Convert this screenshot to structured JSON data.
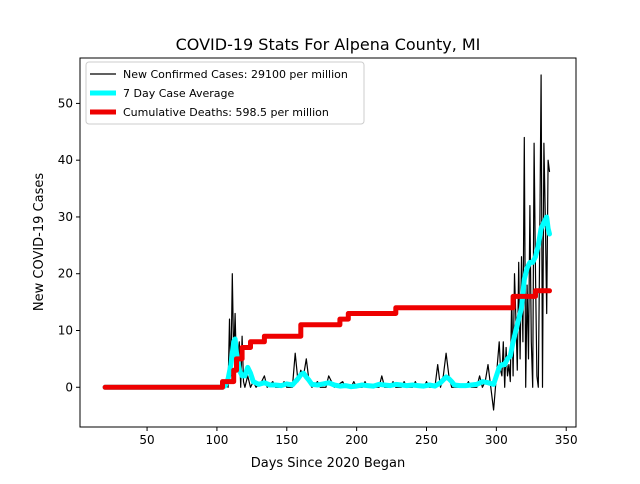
{
  "chart_data": {
    "type": "line",
    "title": "COVID-19 Stats For Alpena County, MI",
    "xlabel": "Days Since 2020 Began",
    "ylabel": "New COVID-19 Cases",
    "xlim": [
      2,
      357
    ],
    "ylim": [
      -7,
      58
    ],
    "x_ticks": [
      50,
      100,
      150,
      200,
      250,
      300,
      350
    ],
    "y_ticks": [
      0,
      10,
      20,
      30,
      40,
      50
    ],
    "grid": false,
    "legend_position": "upper-left",
    "series": [
      {
        "name": "New Confirmed Cases: 29100 per million",
        "color": "#000000",
        "width": "thin",
        "points": [
          [
            20,
            0
          ],
          [
            104,
            0
          ],
          [
            106,
            1
          ],
          [
            108,
            0
          ],
          [
            109,
            12
          ],
          [
            110,
            2
          ],
          [
            111,
            20
          ],
          [
            112,
            5
          ],
          [
            113,
            13
          ],
          [
            114,
            3
          ],
          [
            116,
            8
          ],
          [
            117,
            0
          ],
          [
            118,
            9
          ],
          [
            119,
            1
          ],
          [
            120,
            0
          ],
          [
            122,
            2
          ],
          [
            124,
            0
          ],
          [
            126,
            1
          ],
          [
            128,
            0
          ],
          [
            132,
            1
          ],
          [
            134,
            2
          ],
          [
            136,
            0
          ],
          [
            140,
            1
          ],
          [
            142,
            0
          ],
          [
            146,
            0
          ],
          [
            148,
            1
          ],
          [
            150,
            0
          ],
          [
            154,
            0
          ],
          [
            156,
            6
          ],
          [
            158,
            1
          ],
          [
            160,
            3
          ],
          [
            162,
            2
          ],
          [
            164,
            5
          ],
          [
            166,
            1
          ],
          [
            168,
            0
          ],
          [
            172,
            1
          ],
          [
            174,
            0
          ],
          [
            178,
            0
          ],
          [
            180,
            2
          ],
          [
            182,
            1
          ],
          [
            184,
            0
          ],
          [
            190,
            1
          ],
          [
            192,
            0
          ],
          [
            196,
            0
          ],
          [
            198,
            1
          ],
          [
            200,
            0
          ],
          [
            204,
            0
          ],
          [
            206,
            1
          ],
          [
            208,
            0
          ],
          [
            212,
            0
          ],
          [
            216,
            0
          ],
          [
            218,
            2
          ],
          [
            220,
            0
          ],
          [
            224,
            0
          ],
          [
            226,
            1
          ],
          [
            228,
            0
          ],
          [
            232,
            0
          ],
          [
            234,
            1
          ],
          [
            236,
            0
          ],
          [
            240,
            0
          ],
          [
            242,
            1
          ],
          [
            244,
            0
          ],
          [
            248,
            0
          ],
          [
            250,
            1
          ],
          [
            252,
            0
          ],
          [
            256,
            0
          ],
          [
            258,
            4
          ],
          [
            260,
            0
          ],
          [
            262,
            2
          ],
          [
            264,
            6
          ],
          [
            266,
            2
          ],
          [
            268,
            0
          ],
          [
            272,
            0
          ],
          [
            278,
            0
          ],
          [
            280,
            1
          ],
          [
            282,
            0
          ],
          [
            286,
            0
          ],
          [
            288,
            2
          ],
          [
            290,
            0
          ],
          [
            292,
            1
          ],
          [
            294,
            4
          ],
          [
            296,
            0
          ],
          [
            298,
            -4
          ],
          [
            300,
            2
          ],
          [
            302,
            8
          ],
          [
            303,
            3
          ],
          [
            304,
            2
          ],
          [
            305,
            8
          ],
          [
            306,
            0
          ],
          [
            307,
            7
          ],
          [
            308,
            2
          ],
          [
            309,
            4
          ],
          [
            310,
            1
          ],
          [
            311,
            16
          ],
          [
            312,
            2
          ],
          [
            313,
            20
          ],
          [
            314,
            12
          ],
          [
            315,
            3
          ],
          [
            316,
            22
          ],
          [
            317,
            5
          ],
          [
            318,
            23
          ],
          [
            319,
            8
          ],
          [
            320,
            44
          ],
          [
            321,
            0
          ],
          [
            322,
            18
          ],
          [
            323,
            5
          ],
          [
            324,
            32
          ],
          [
            325,
            8
          ],
          [
            326,
            0
          ],
          [
            327,
            43
          ],
          [
            328,
            20
          ],
          [
            329,
            2
          ],
          [
            330,
            0
          ],
          [
            331,
            25
          ],
          [
            332,
            55
          ],
          [
            333,
            0
          ],
          [
            334,
            43
          ],
          [
            335,
            30
          ],
          [
            336,
            13
          ],
          [
            337,
            40
          ],
          [
            338,
            38
          ]
        ]
      },
      {
        "name": "7 Day Case Average",
        "color": "#00ffff",
        "width": "thick",
        "points": [
          [
            20,
            0
          ],
          [
            104,
            0
          ],
          [
            106,
            0.3
          ],
          [
            108,
            1.5
          ],
          [
            110,
            4
          ],
          [
            112,
            8
          ],
          [
            113,
            8.5
          ],
          [
            114,
            6
          ],
          [
            116,
            3
          ],
          [
            118,
            2
          ],
          [
            120,
            2
          ],
          [
            122,
            3.5
          ],
          [
            124,
            2.5
          ],
          [
            126,
            1
          ],
          [
            130,
            0.5
          ],
          [
            134,
            0.8
          ],
          [
            138,
            0.4
          ],
          [
            142,
            0.4
          ],
          [
            146,
            0.3
          ],
          [
            150,
            0.6
          ],
          [
            154,
            0.4
          ],
          [
            158,
            1.5
          ],
          [
            160,
            2.2
          ],
          [
            162,
            2.5
          ],
          [
            164,
            1.8
          ],
          [
            166,
            1.2
          ],
          [
            168,
            0.5
          ],
          [
            172,
            0.4
          ],
          [
            176,
            0.6
          ],
          [
            180,
            0.8
          ],
          [
            184,
            0.4
          ],
          [
            188,
            0.2
          ],
          [
            192,
            0.3
          ],
          [
            196,
            0.1
          ],
          [
            200,
            0.2
          ],
          [
            204,
            0.4
          ],
          [
            208,
            0.3
          ],
          [
            212,
            0.2
          ],
          [
            216,
            0.5
          ],
          [
            220,
            0.4
          ],
          [
            224,
            0.3
          ],
          [
            228,
            0.5
          ],
          [
            232,
            0.4
          ],
          [
            236,
            0.3
          ],
          [
            240,
            0.4
          ],
          [
            244,
            0.3
          ],
          [
            248,
            0.2
          ],
          [
            252,
            0.4
          ],
          [
            256,
            0.2
          ],
          [
            260,
            0.8
          ],
          [
            262,
            1.3
          ],
          [
            264,
            1.8
          ],
          [
            266,
            1.5
          ],
          [
            268,
            1.0
          ],
          [
            270,
            0.4
          ],
          [
            274,
            0.3
          ],
          [
            278,
            0.3
          ],
          [
            282,
            0.4
          ],
          [
            286,
            0.5
          ],
          [
            290,
            1.0
          ],
          [
            294,
            0.8
          ],
          [
            298,
            0.5
          ],
          [
            300,
            2
          ],
          [
            302,
            3.5
          ],
          [
            304,
            4
          ],
          [
            306,
            4
          ],
          [
            308,
            5
          ],
          [
            310,
            5.5
          ],
          [
            312,
            8
          ],
          [
            314,
            10
          ],
          [
            316,
            12
          ],
          [
            318,
            14
          ],
          [
            320,
            19
          ],
          [
            322,
            21
          ],
          [
            324,
            22
          ],
          [
            326,
            22
          ],
          [
            328,
            23
          ],
          [
            330,
            25
          ],
          [
            332,
            28
          ],
          [
            334,
            29
          ],
          [
            336,
            30
          ],
          [
            337,
            28
          ],
          [
            338,
            27
          ]
        ]
      },
      {
        "name": "Cumulative Deaths: 598.5 per million",
        "color": "#ee0000",
        "width": "thick",
        "points": [
          [
            20,
            0
          ],
          [
            104,
            0
          ],
          [
            104,
            1
          ],
          [
            112,
            1
          ],
          [
            112,
            3
          ],
          [
            114,
            3
          ],
          [
            114,
            5
          ],
          [
            118,
            5
          ],
          [
            118,
            7
          ],
          [
            124,
            7
          ],
          [
            124,
            8
          ],
          [
            134,
            8
          ],
          [
            134,
            9
          ],
          [
            160,
            9
          ],
          [
            160,
            11
          ],
          [
            188,
            11
          ],
          [
            188,
            12
          ],
          [
            194,
            12
          ],
          [
            194,
            13
          ],
          [
            228,
            13
          ],
          [
            228,
            14
          ],
          [
            312,
            14
          ],
          [
            312,
            16
          ],
          [
            328,
            16
          ],
          [
            328,
            17
          ],
          [
            338,
            17
          ]
        ]
      }
    ]
  }
}
